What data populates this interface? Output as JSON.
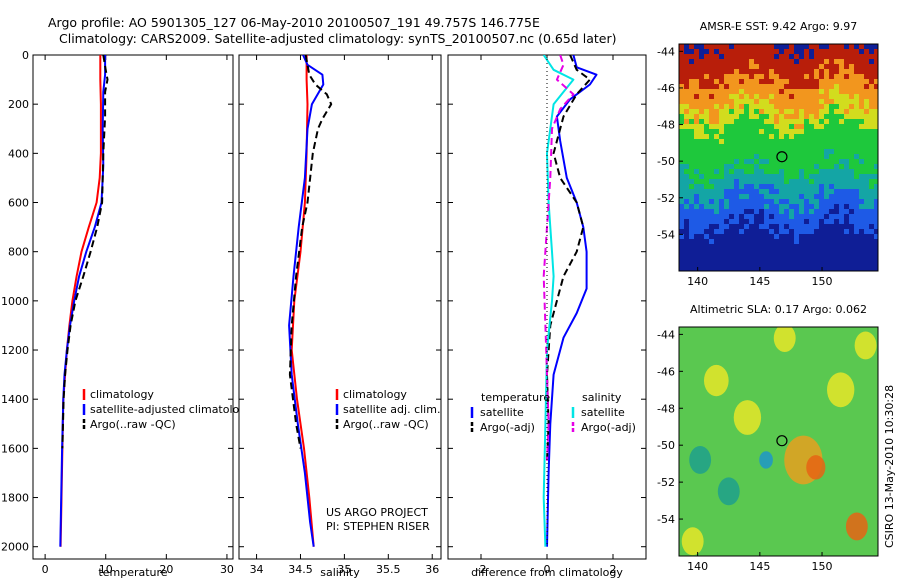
{
  "title_line1": "Argo profile: AO 5901305_127 06-May-2010 20100507_191 49.757S 146.775E",
  "title_line2": "Climatology: CARS2009. Satellite-adjusted climatology: synTS_20100507.nc (0.65d later)",
  "credit_line1": "US ARGO PROJECT",
  "credit_line2": "PI: STEPHEN RISER",
  "side_text": "CSIRO 13-May-2010 10:30:28",
  "colors": {
    "climatology": "#ff0000",
    "satellite": "#0000ff",
    "argo": "#000000",
    "sat_salinity": "#00e5e5",
    "argo_adj_salinity": "#e600e6"
  },
  "chart_data": [
    {
      "type": "line",
      "name": "temperature-profile",
      "xlabel": "temperature",
      "ylabel": "",
      "xlim": [
        -2,
        31
      ],
      "ylim": [
        2050,
        0
      ],
      "xticks": [
        0,
        10,
        20,
        30
      ],
      "yticks": [
        0,
        200,
        400,
        600,
        800,
        1000,
        1200,
        1400,
        1600,
        1800,
        2000
      ],
      "legend": [
        "climatology",
        "satellite-adjusted climatology",
        "Argo(..raw -QC)"
      ],
      "series": [
        {
          "name": "climatology",
          "color": "red",
          "style": "solid",
          "points": [
            [
              9.1,
              0
            ],
            [
              9.1,
              100
            ],
            [
              9.2,
              200
            ],
            [
              9.2,
              400
            ],
            [
              9.0,
              500
            ],
            [
              8.5,
              600
            ],
            [
              7.2,
              700
            ],
            [
              6.0,
              800
            ],
            [
              5.2,
              900
            ],
            [
              4.5,
              1000
            ],
            [
              4.0,
              1100
            ],
            [
              3.6,
              1200
            ],
            [
              3.3,
              1300
            ],
            [
              3.0,
              1400
            ],
            [
              2.85,
              1600
            ],
            [
              2.7,
              1800
            ],
            [
              2.55,
              2000
            ]
          ]
        },
        {
          "name": "satellite-adjusted climatology",
          "color": "blue",
          "style": "solid",
          "points": [
            [
              9.9,
              0
            ],
            [
              9.9,
              80
            ],
            [
              9.6,
              150
            ],
            [
              9.5,
              300
            ],
            [
              9.6,
              450
            ],
            [
              9.3,
              600
            ],
            [
              8.2,
              700
            ],
            [
              6.8,
              800
            ],
            [
              5.6,
              900
            ],
            [
              4.8,
              1000
            ],
            [
              4.1,
              1100
            ],
            [
              3.6,
              1200
            ],
            [
              3.2,
              1300
            ],
            [
              3.0,
              1400
            ],
            [
              2.8,
              1600
            ],
            [
              2.65,
              1800
            ],
            [
              2.5,
              2000
            ]
          ]
        },
        {
          "name": "Argo(..raw -QC)",
          "color": "black",
          "style": "dashed",
          "points": [
            [
              9.6,
              0
            ],
            [
              10.0,
              60
            ],
            [
              10.3,
              100
            ],
            [
              9.9,
              150
            ],
            [
              9.9,
              250
            ],
            [
              9.6,
              400
            ],
            [
              9.4,
              600
            ],
            [
              8.6,
              700
            ],
            [
              7.5,
              800
            ],
            [
              6.3,
              900
            ],
            [
              5.0,
              1000
            ],
            [
              4.2,
              1100
            ],
            [
              3.7,
              1200
            ],
            [
              3.3,
              1300
            ],
            [
              3.05,
              1400
            ],
            [
              2.85,
              1600
            ]
          ]
        }
      ]
    },
    {
      "type": "line",
      "name": "salinity-profile",
      "xlabel": "salinity",
      "ylabel": "",
      "xlim": [
        33.8,
        36.1
      ],
      "ylim": [
        2050,
        0
      ],
      "xticks": [
        34,
        34.5,
        35,
        35.5,
        36
      ],
      "legend": [
        "climatology",
        "satellite adj. clim.",
        "Argo(..raw -QC)"
      ],
      "series": [
        {
          "name": "climatology",
          "color": "red",
          "style": "solid",
          "points": [
            [
              34.57,
              0
            ],
            [
              34.57,
              100
            ],
            [
              34.58,
              200
            ],
            [
              34.57,
              400
            ],
            [
              34.55,
              600
            ],
            [
              34.5,
              800
            ],
            [
              34.43,
              1000
            ],
            [
              34.4,
              1200
            ],
            [
              34.46,
              1400
            ],
            [
              34.54,
              1600
            ],
            [
              34.6,
              1800
            ],
            [
              34.65,
              2000
            ]
          ]
        },
        {
          "name": "satellite adj. clim.",
          "color": "blue",
          "style": "solid",
          "points": [
            [
              34.53,
              0
            ],
            [
              34.58,
              40
            ],
            [
              34.75,
              80
            ],
            [
              34.76,
              120
            ],
            [
              34.63,
              200
            ],
            [
              34.58,
              300
            ],
            [
              34.55,
              500
            ],
            [
              34.48,
              700
            ],
            [
              34.42,
              900
            ],
            [
              34.37,
              1100
            ],
            [
              34.4,
              1300
            ],
            [
              34.47,
              1500
            ],
            [
              34.55,
              1700
            ],
            [
              34.61,
              1900
            ],
            [
              34.65,
              2000
            ]
          ]
        },
        {
          "name": "Argo(..raw -QC)",
          "color": "black",
          "style": "dashed",
          "points": [
            [
              34.56,
              0
            ],
            [
              34.6,
              80
            ],
            [
              34.67,
              120
            ],
            [
              34.8,
              160
            ],
            [
              34.85,
              200
            ],
            [
              34.75,
              260
            ],
            [
              34.7,
              300
            ],
            [
              34.64,
              400
            ],
            [
              34.58,
              600
            ],
            [
              34.52,
              700
            ],
            [
              34.45,
              900
            ],
            [
              34.4,
              1100
            ],
            [
              34.38,
              1300
            ],
            [
              34.45,
              1500
            ],
            [
              34.5,
              1600
            ]
          ]
        }
      ]
    },
    {
      "type": "line",
      "name": "difference-profile",
      "xlabel": "difference from climatology",
      "ylabel": "",
      "xlim": [
        -3,
        3
      ],
      "ylim": [
        2050,
        0
      ],
      "xticks": [
        -2,
        0,
        2
      ],
      "legend_groups": [
        {
          "heading": "temperature",
          "entries": [
            "satellite",
            "Argo(-adj)"
          ]
        },
        {
          "heading": "salinity",
          "entries": [
            "satellite",
            "Argo(-adj)"
          ]
        }
      ],
      "series": [
        {
          "name": "temperature satellite",
          "color": "blue",
          "style": "solid",
          "points": [
            [
              0.8,
              0
            ],
            [
              0.9,
              50
            ],
            [
              1.5,
              80
            ],
            [
              1.3,
              120
            ],
            [
              0.7,
              180
            ],
            [
              0.3,
              250
            ],
            [
              0.4,
              350
            ],
            [
              0.6,
              500
            ],
            [
              0.9,
              600
            ],
            [
              1.1,
              700
            ],
            [
              1.2,
              800
            ],
            [
              1.2,
              950
            ],
            [
              0.9,
              1050
            ],
            [
              0.5,
              1150
            ],
            [
              0.2,
              1300
            ],
            [
              0.1,
              1500
            ],
            [
              0.05,
              1700
            ],
            [
              0.0,
              2000
            ]
          ]
        },
        {
          "name": "temperature Argo(-adj)",
          "color": "black",
          "style": "dashed",
          "points": [
            [
              0.7,
              0
            ],
            [
              0.9,
              60
            ],
            [
              1.3,
              100
            ],
            [
              0.9,
              160
            ],
            [
              0.5,
              250
            ],
            [
              0.2,
              400
            ],
            [
              0.4,
              500
            ],
            [
              0.9,
              600
            ],
            [
              1.1,
              700
            ],
            [
              0.9,
              800
            ],
            [
              0.5,
              900
            ],
            [
              0.1,
              1100
            ],
            [
              0.0,
              1300
            ],
            [
              0.05,
              1500
            ],
            [
              0.0,
              1650
            ]
          ]
        },
        {
          "name": "salinity satellite",
          "color": "cyan",
          "style": "solid",
          "points": [
            [
              -0.1,
              0
            ],
            [
              0.2,
              60
            ],
            [
              0.8,
              100
            ],
            [
              0.5,
              150
            ],
            [
              0.2,
              200
            ],
            [
              0.0,
              400
            ],
            [
              0.05,
              600
            ],
            [
              0.15,
              800
            ],
            [
              0.2,
              900
            ],
            [
              0.15,
              1000
            ],
            [
              0.0,
              1200
            ],
            [
              -0.05,
              1500
            ],
            [
              -0.1,
              1800
            ],
            [
              -0.05,
              2000
            ]
          ]
        },
        {
          "name": "salinity Argo(-adj)",
          "color": "magenta",
          "style": "dashed",
          "points": [
            [
              0.4,
              0
            ],
            [
              0.5,
              40
            ],
            [
              0.3,
              100
            ],
            [
              0.8,
              160
            ],
            [
              0.4,
              220
            ],
            [
              0.15,
              300
            ],
            [
              0.1,
              500
            ],
            [
              0.0,
              700
            ],
            [
              -0.1,
              900
            ],
            [
              -0.05,
              1100
            ],
            [
              0.0,
              1300
            ],
            [
              0.05,
              1500
            ],
            [
              0.0,
              1650
            ]
          ]
        },
        {
          "name": "zero-line",
          "color": "black",
          "style": "dotted",
          "points": [
            [
              0,
              0
            ],
            [
              0,
              2000
            ]
          ]
        }
      ]
    },
    {
      "type": "heatmap",
      "name": "sst-map",
      "title": "AMSR-E SST: 9.42 Argo: 9.97",
      "xlim": [
        138.5,
        154.5
      ],
      "ylim": [
        -56,
        -43.6
      ],
      "xticks": [
        140,
        145,
        150
      ],
      "yticks": [
        -44,
        -46,
        -48,
        -50,
        -52,
        -54
      ],
      "bands": [
        {
          "lat": [
            -45.5,
            -43.6
          ],
          "color": "#b81e0a"
        },
        {
          "lat": [
            -47.0,
            -45.5
          ],
          "color": "#f2961e"
        },
        {
          "lat": [
            -48.0,
            -47.0
          ],
          "color": "#d2dc1e"
        },
        {
          "lat": [
            -50.5,
            -48.0
          ],
          "color": "#1ec83c"
        },
        {
          "lat": [
            -52.0,
            -50.5
          ],
          "color": "#14a5a5"
        },
        {
          "lat": [
            -53.5,
            -52.0
          ],
          "color": "#1e5ae6"
        },
        {
          "lat": [
            -56.0,
            -53.5
          ],
          "color": "#0f1e96"
        }
      ],
      "marker": {
        "lon": 146.775,
        "lat": -49.757
      }
    },
    {
      "type": "heatmap",
      "name": "sla-map",
      "title": "Altimetric SLA: 0.17 Argo: 0.062",
      "xlim": [
        138.5,
        154.5
      ],
      "ylim": [
        -56,
        -43.6
      ],
      "xticks": [
        140,
        145,
        150
      ],
      "yticks": [
        -44,
        -46,
        -48,
        -50,
        -52,
        -54
      ],
      "background": "#5ac850",
      "blobs": [
        {
          "lon": 141.5,
          "lat": -46.5,
          "r": 0.9,
          "color": "#e6e628"
        },
        {
          "lon": 144.0,
          "lat": -48.5,
          "r": 1.0,
          "color": "#e6e628"
        },
        {
          "lon": 148.5,
          "lat": -50.8,
          "r": 1.4,
          "color": "#e6a01e"
        },
        {
          "lon": 149.5,
          "lat": -51.2,
          "r": 0.7,
          "color": "#e66414"
        },
        {
          "lon": 152.8,
          "lat": -54.4,
          "r": 0.8,
          "color": "#e66414"
        },
        {
          "lon": 151.5,
          "lat": -47.0,
          "r": 1.0,
          "color": "#e6e628"
        },
        {
          "lon": 142.5,
          "lat": -52.5,
          "r": 0.8,
          "color": "#1ea08c"
        },
        {
          "lon": 145.5,
          "lat": -50.8,
          "r": 0.5,
          "color": "#1e96c8"
        },
        {
          "lon": 140.2,
          "lat": -50.8,
          "r": 0.8,
          "color": "#1ea08c"
        },
        {
          "lon": 139.6,
          "lat": -55.2,
          "r": 0.8,
          "color": "#e6e628"
        },
        {
          "lon": 153.5,
          "lat": -44.6,
          "r": 0.8,
          "color": "#e6e628"
        },
        {
          "lon": 147.0,
          "lat": -44.2,
          "r": 0.8,
          "color": "#e6e628"
        }
      ],
      "marker": {
        "lon": 146.775,
        "lat": -49.757
      }
    }
  ]
}
